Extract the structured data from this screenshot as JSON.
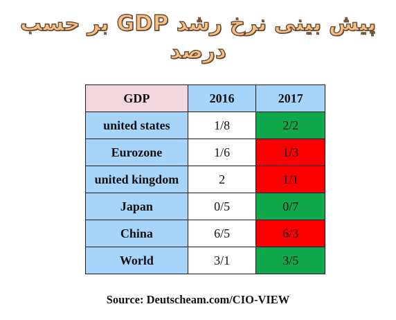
{
  "title": "پیش بینی نرخ رشد GDP بر حسب درصد",
  "table": {
    "header": [
      "GDP",
      "2016",
      "2017"
    ],
    "rows": [
      {
        "label": "united states",
        "v2016": "1/8",
        "v2017": "2/2",
        "color2017": "#11a74b"
      },
      {
        "label": "Eurozone",
        "v2016": "1/6",
        "v2017": "1/3",
        "color2017": "#fb0000"
      },
      {
        "label": "united kingdom",
        "v2016": "2",
        "v2017": "1/1",
        "color2017": "#fb0000"
      },
      {
        "label": "Japan",
        "v2016": "0/5",
        "v2017": "0/7",
        "color2017": "#11a74b"
      },
      {
        "label": "China",
        "v2016": "6/5",
        "v2017": "6/3",
        "color2017": "#fb0000"
      },
      {
        "label": "World",
        "v2016": "3/1",
        "v2017": "3/5",
        "color2017": "#11a74b"
      }
    ]
  },
  "source": "Source: Deutscheam.com/CIO-VIEW",
  "colors": {
    "header_gdp_bg": "#f1d6de",
    "header_year_bg": "#a7d4f9",
    "row_label_bg": "#a7d4f9",
    "positive_green": "#11a74b",
    "negative_red": "#fb0000",
    "title_fill": "#f6bf86"
  }
}
